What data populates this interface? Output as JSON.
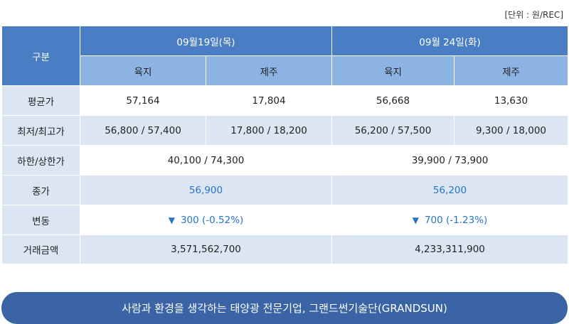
{
  "unit_label": "[단위 : 원/REC]",
  "header": {
    "gubun": "구분",
    "date1": "09월19일(목)",
    "date2": "09월 24일(화)",
    "sub": [
      "육지",
      "제주",
      "육지",
      "제주"
    ]
  },
  "rows": {
    "avg": {
      "label": "평균가",
      "values": [
        "57,164",
        "17,804",
        "56,668",
        "13,630"
      ]
    },
    "minmax": {
      "label": "최저/최고가",
      "values": [
        "56,800 / 57,400",
        "17,800 / 18,200",
        "56,200 / 57,500",
        "9,300 / 18,000"
      ]
    },
    "limit": {
      "label": "하한/상한가",
      "values": [
        "40,100 / 74,300",
        "39,900 / 73,900"
      ]
    },
    "close": {
      "label": "종가",
      "values": [
        "56,900",
        "56,200"
      ]
    },
    "change": {
      "label": "변동",
      "arrow": "▼",
      "values": [
        "300 (-0.52%)",
        "700 (-1.23%)"
      ]
    },
    "volume": {
      "label": "거래금액",
      "values": [
        "3,571,562,700",
        "4,233,311,900"
      ]
    }
  },
  "banner": "사람과 환경을 생각하는 태양광 전문기업, 그랜드썬기술단(GRANDSUN)",
  "colors": {
    "header_dark": "#4a7ec4",
    "header_light": "#8db3e2",
    "row_tint": "#dce6f2",
    "accent_blue": "#2673c8",
    "banner": "#3a64a6"
  }
}
